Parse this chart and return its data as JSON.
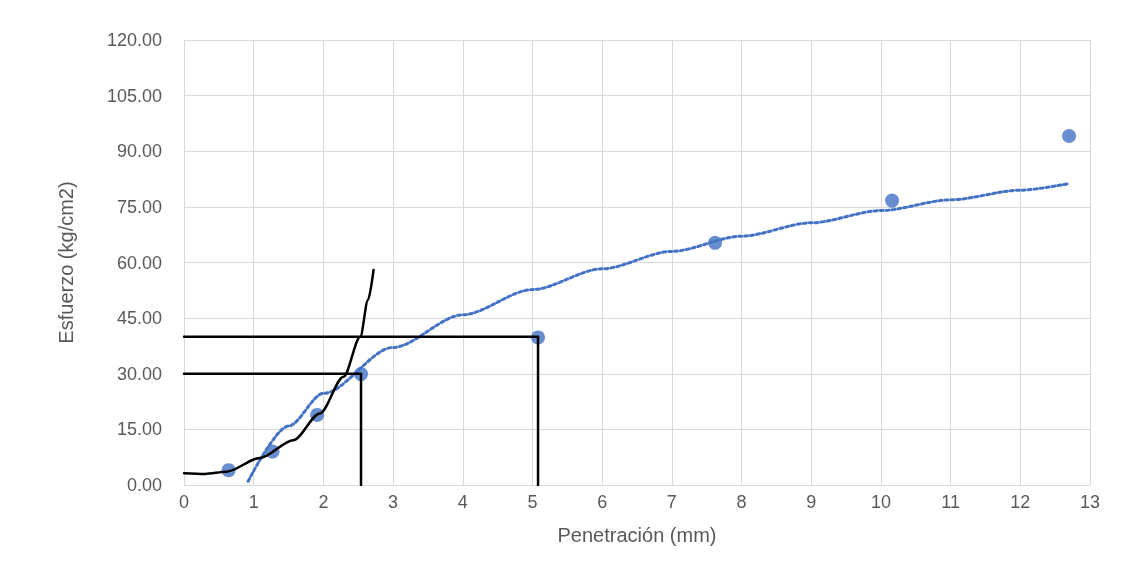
{
  "chart_data": {
    "type": "scatter",
    "xlabel": "Penetración (mm)",
    "ylabel": "Esfuerzo (kg/cm2)",
    "xlim": [
      0,
      13
    ],
    "xticks": [
      0,
      1,
      2,
      3,
      4,
      5,
      6,
      7,
      8,
      9,
      10,
      11,
      12,
      13
    ],
    "ylim": [
      0,
      120
    ],
    "yticks": [
      {
        "value": 0,
        "label": "0.00"
      },
      {
        "value": 15,
        "label": "15.00"
      },
      {
        "value": 30,
        "label": "30.00"
      },
      {
        "value": 45,
        "label": "45.00"
      },
      {
        "value": 60,
        "label": "60.00"
      },
      {
        "value": 75,
        "label": "75.00"
      },
      {
        "value": 90,
        "label": "90.00"
      },
      {
        "value": 105,
        "label": "105.00"
      },
      {
        "value": 120,
        "label": "120.00"
      }
    ],
    "grid": true,
    "series": [
      {
        "type": "scatter",
        "marker": "circle",
        "color": "#4472c4",
        "x": [
          0.64,
          1.27,
          1.91,
          2.54,
          5.08,
          7.62,
          10.16,
          12.7
        ],
        "values": [
          4.0,
          9.0,
          18.9,
          29.9,
          39.8,
          65.3,
          76.7,
          94.1
        ]
      },
      {
        "type": "line",
        "marker": "none",
        "line_style": "dotted",
        "color": "#4472c4",
        "x": [
          0.92,
          1.5,
          2,
          3,
          4,
          5,
          6,
          7,
          8,
          9,
          10,
          11,
          12,
          12.7
        ],
        "values": [
          1.0,
          15.9,
          24.7,
          37.1,
          45.9,
          52.7,
          58.3,
          63.0,
          67.1,
          70.7,
          74.0,
          76.9,
          79.5,
          81.3
        ]
      },
      {
        "type": "line",
        "marker": "none",
        "line_style": "solid",
        "color": "#000000",
        "x": [
          0,
          5.08,
          5.08
        ],
        "values": [
          40,
          40,
          0
        ]
      },
      {
        "type": "line",
        "marker": "none",
        "line_style": "solid",
        "color": "#000000",
        "x": [
          0,
          2.54,
          2.54
        ],
        "values": [
          30,
          30,
          0
        ]
      },
      {
        "type": "line",
        "marker": "none",
        "line_style": "solid",
        "color": "#000000",
        "x": [
          0,
          0.3,
          0.61,
          1.09,
          1.57,
          1.95,
          2.29,
          2.53,
          2.64,
          2.72
        ],
        "values": [
          3.2,
          3.0,
          3.6,
          7.3,
          12.1,
          19.3,
          29.2,
          40,
          49.9,
          58
        ]
      }
    ]
  }
}
